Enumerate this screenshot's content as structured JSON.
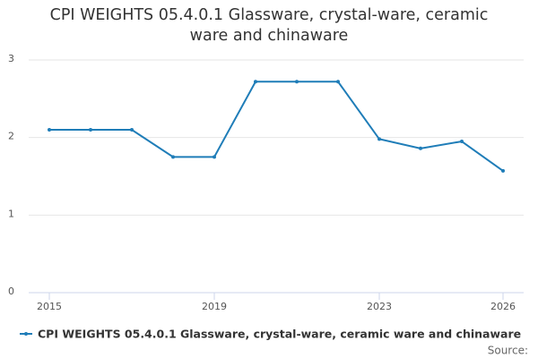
{
  "chart_data": {
    "type": "line",
    "title": "CPI WEIGHTS 05.4.0.1 Glassware, crystal-ware, ceramic ware and chinaware",
    "x": [
      2015,
      2016,
      2017,
      2018,
      2019,
      2020,
      2021,
      2022,
      2023,
      2024,
      2025,
      2026
    ],
    "series": [
      {
        "name": "CPI WEIGHTS 05.4.0.1 Glassware, crystal-ware, ceramic ware and chinaware",
        "color": "#1f7db8",
        "values": [
          2.1,
          2.1,
          2.1,
          1.75,
          1.75,
          2.72,
          2.72,
          2.72,
          1.98,
          1.86,
          1.95,
          1.57
        ]
      }
    ],
    "xlim": [
      2014.5,
      2026.5
    ],
    "xticks": [
      2015,
      2019,
      2023,
      2026
    ],
    "ylim": [
      0,
      3
    ],
    "yticks": [
      0,
      1,
      2,
      3
    ],
    "grid": true,
    "source": "Source:"
  }
}
